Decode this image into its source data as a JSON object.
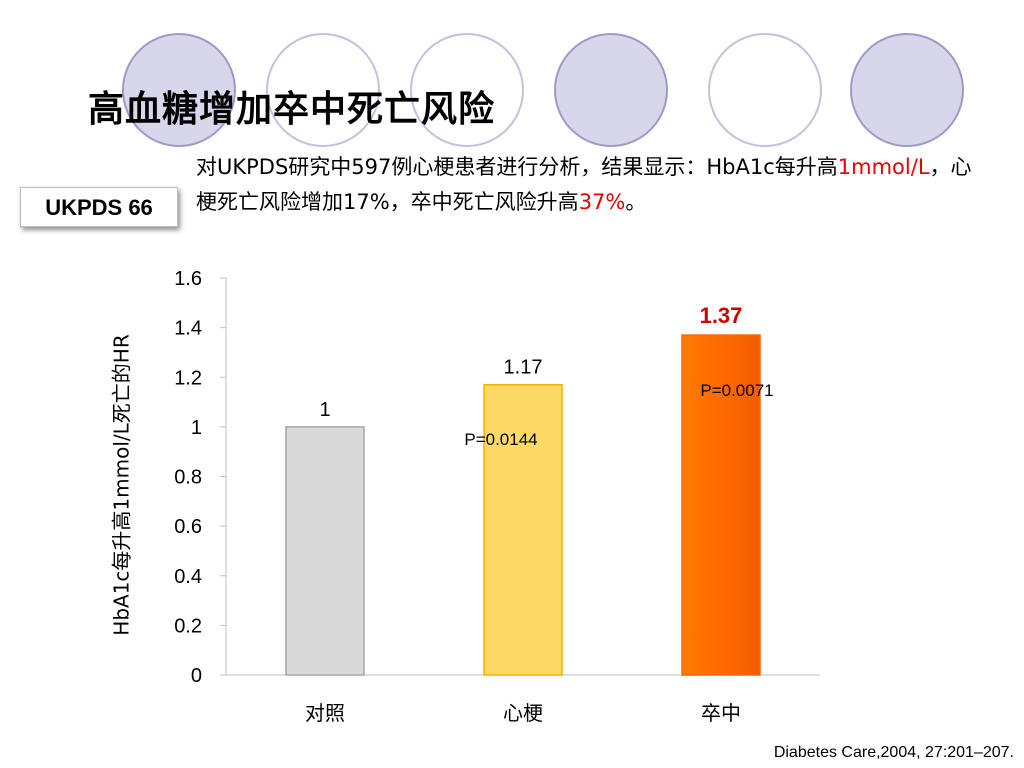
{
  "title": "高血糖增加卒中死亡风险",
  "badge": "UKPDS 66",
  "description": {
    "part1": "对UKPDS研究中597例心梗患者进行分析，结果显示：HbA1c每升高",
    "red1": "1mmol/L",
    "part2": "，心梗死亡风险增加17%，卒中死亡风险升高",
    "red2": "37%",
    "part3": "。"
  },
  "citation": "Diabetes Care,2004, 27:201–207.",
  "colors": {
    "bar_control": "#d9d9d9",
    "bar_mi": "#ffd966",
    "bar_stroke": "#ff6600",
    "highlight_red": "#cc0000"
  },
  "chart_data": {
    "type": "bar",
    "title": "",
    "xlabel": "",
    "ylabel": "HbA1c每升高1mmol/L死亡的HR",
    "ylim": [
      0,
      1.6
    ],
    "yticks": [
      "0",
      "0.2",
      "0.4",
      "0.6",
      "0.8",
      "1",
      "1.2",
      "1.4",
      "1.6"
    ],
    "categories": [
      "对照",
      "心梗",
      "卒中"
    ],
    "values": [
      1,
      1.17,
      1.37
    ],
    "value_labels": [
      "1",
      "1.17",
      "1.37"
    ],
    "p_values": [
      "",
      "P=0.0144",
      "P=0.0071"
    ],
    "grid": false
  }
}
